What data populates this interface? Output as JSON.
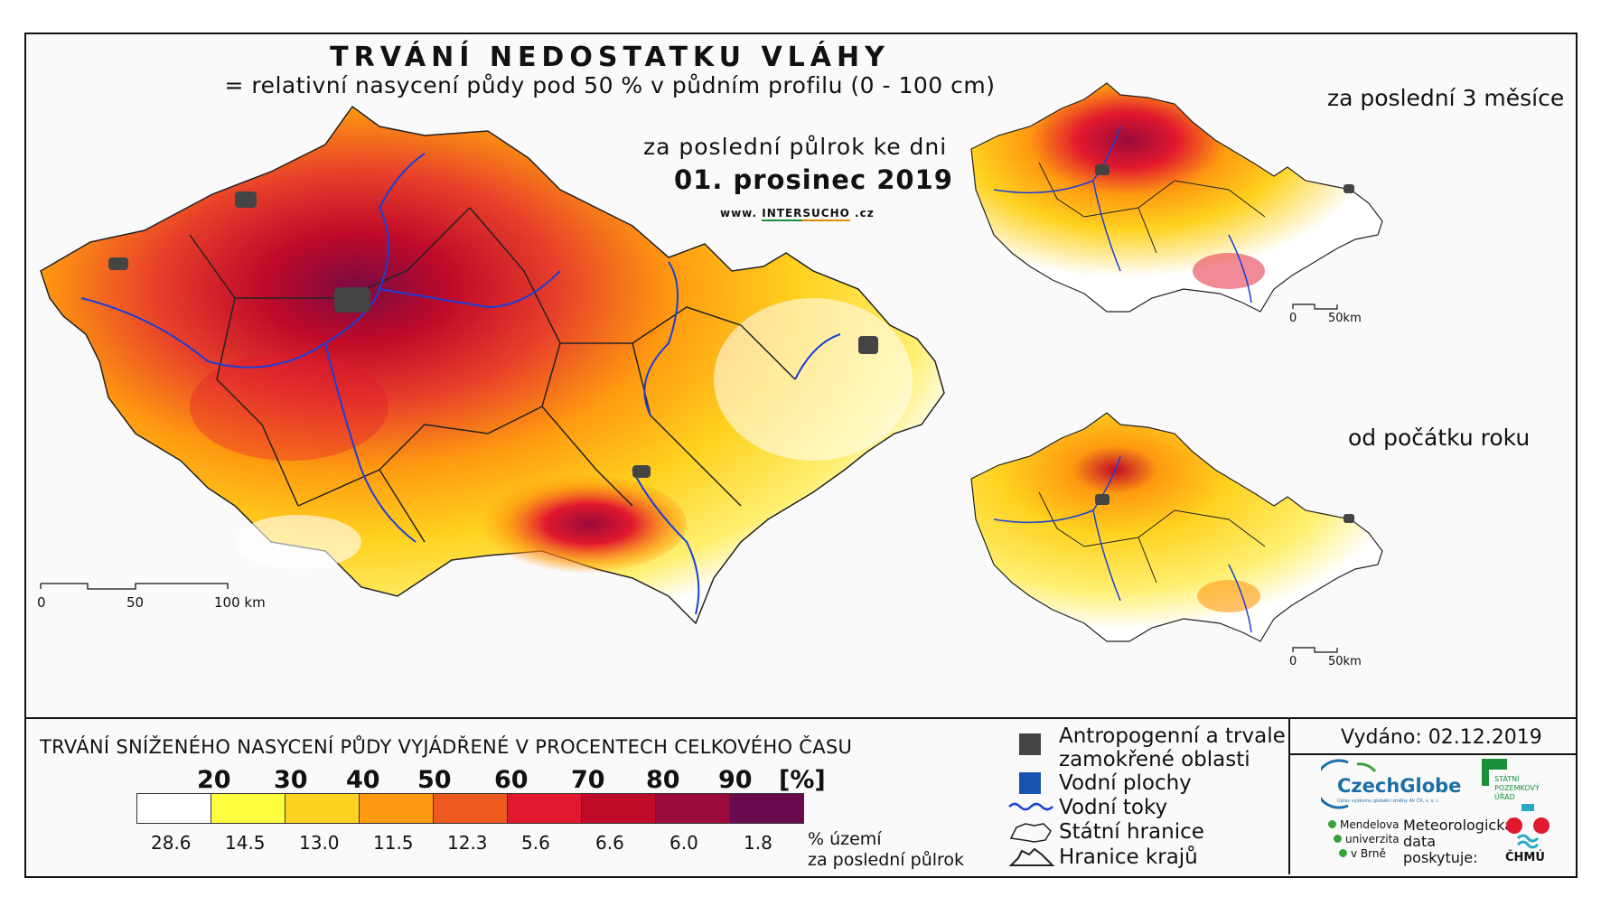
{
  "header": {
    "title": "TRVÁNÍ NEDOSTATKU VLÁHY",
    "subtitle": "= relativní nasycení půdy pod 50 % v půdním profilu (0 - 100 cm)",
    "period_label": "za poslední půlrok ke dni",
    "date": "01. prosinec 2019",
    "website_prefix": "www.",
    "website_brand_1": "INTER",
    "website_brand_2": "SUCHO",
    "website_suffix": ".cz"
  },
  "main_map": {
    "scale_labels": [
      "0",
      "50",
      "100 km"
    ]
  },
  "inset_maps": [
    {
      "title": "za poslední 3 měsíce",
      "scale_labels": [
        "0",
        "50km"
      ]
    },
    {
      "title": "od počátku roku",
      "scale_labels": [
        "0",
        "50km"
      ]
    }
  ],
  "legend": {
    "title": "TRVÁNÍ SNÍŽENÉHO NASYCENÍ PŮDY VYJÁDŘENÉ V PROCENTECH CELKOVÉHO ČASU",
    "thresholds": [
      "20",
      "30",
      "40",
      "50",
      "60",
      "70",
      "80",
      "90",
      "[%]"
    ],
    "classes": [
      {
        "color": "#ffffff",
        "share": "28.6"
      },
      {
        "color": "#ffff40",
        "share": "14.5"
      },
      {
        "color": "#ffd21f",
        "share": "13.0"
      },
      {
        "color": "#ff9a10",
        "share": "11.5"
      },
      {
        "color": "#ee5a1e",
        "share": "12.3"
      },
      {
        "color": "#e2182e",
        "share": "5.6"
      },
      {
        "color": "#c00a2a",
        "share": "6.6"
      },
      {
        "color": "#9a0a3a",
        "share": "6.0"
      },
      {
        "color": "#6a0a4e",
        "share": "1.8"
      }
    ],
    "unit_line1": "% území",
    "unit_line2": "za poslední půlrok"
  },
  "map_key": {
    "items": [
      {
        "icon": "dark-square-icon",
        "color": "#444444",
        "label_line1": "Antropogenní a trvale",
        "label_line2": "zamokřené oblasti"
      },
      {
        "icon": "blue-square-icon",
        "color": "#1753b0",
        "label_line1": "Vodní plochy"
      },
      {
        "icon": "river-line-icon",
        "color": "#1a3fd8",
        "label_line1": "Vodní toky"
      },
      {
        "icon": "state-border-icon",
        "color": "#222222",
        "label_line1": "Státní hranice"
      },
      {
        "icon": "region-border-icon",
        "color": "#222222",
        "label_line1": "Hranice krajů"
      }
    ]
  },
  "footer": {
    "issued": "Vydáno: 02.12.2019",
    "czechglobe": "CzechGlobe",
    "czechglobe_tagline": "Ústav výzkumu globální změny AV ČR, v. v. i.",
    "szu_line1": "STÁTNÍ",
    "szu_line2": "POZEMKOVÝ",
    "szu_line3": "ÚŘAD",
    "mendel_line1": "Mendelova",
    "mendel_line2": "univerzita",
    "mendel_line3": "v Brně",
    "meteo_line1": "Meteorologická",
    "meteo_line2": "data",
    "meteo_line3": "poskytuje:",
    "chmu": "ČHMÚ"
  }
}
